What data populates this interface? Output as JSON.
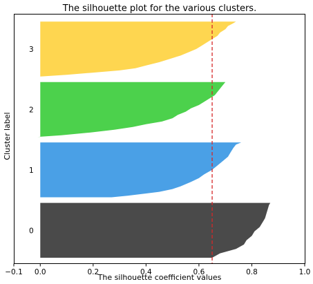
{
  "chart_data": {
    "type": "area",
    "title": "The silhouette plot for the various clusters.",
    "xlabel": "The silhouette coefficient values",
    "ylabel": "Cluster label",
    "xlim": [
      -0.1,
      1.0
    ],
    "ylim": [
      0,
      450
    ],
    "x_ticks": [
      -0.1,
      0.0,
      0.2,
      0.4,
      0.6,
      0.8,
      1.0
    ],
    "x_tick_labels": [
      "−0.1",
      "0.0",
      "0.2",
      "0.4",
      "0.6",
      "0.8",
      "1.0"
    ],
    "grid": false,
    "average_silhouette": 0.65,
    "average_line_color": "#d62728",
    "clusters": [
      {
        "label": "0",
        "color": "#4a4a4a",
        "y_lower": 10,
        "y_upper": 109,
        "profile": [
          [
            0,
            0.65
          ],
          [
            0.08,
            0.68
          ],
          [
            0.16,
            0.74
          ],
          [
            0.24,
            0.77
          ],
          [
            0.32,
            0.78
          ],
          [
            0.4,
            0.8
          ],
          [
            0.48,
            0.81
          ],
          [
            0.56,
            0.83
          ],
          [
            0.64,
            0.84
          ],
          [
            0.72,
            0.85
          ],
          [
            0.8,
            0.855
          ],
          [
            0.88,
            0.86
          ],
          [
            0.96,
            0.865
          ],
          [
            1,
            0.87
          ]
        ]
      },
      {
        "label": "1",
        "color": "#4aa0e6",
        "y_lower": 119,
        "y_upper": 218,
        "profile": [
          [
            0,
            0.27
          ],
          [
            0.03,
            0.33
          ],
          [
            0.07,
            0.4
          ],
          [
            0.1,
            0.45
          ],
          [
            0.15,
            0.5
          ],
          [
            0.2,
            0.53
          ],
          [
            0.28,
            0.57
          ],
          [
            0.35,
            0.6
          ],
          [
            0.42,
            0.62
          ],
          [
            0.5,
            0.65
          ],
          [
            0.58,
            0.67
          ],
          [
            0.66,
            0.69
          ],
          [
            0.74,
            0.71
          ],
          [
            0.82,
            0.72
          ],
          [
            0.9,
            0.73
          ],
          [
            0.96,
            0.74
          ],
          [
            1,
            0.76
          ]
        ]
      },
      {
        "label": "2",
        "color": "#4cd14c",
        "y_lower": 228,
        "y_upper": 327,
        "profile": [
          [
            0,
            -0.01
          ],
          [
            0.03,
            0.08
          ],
          [
            0.08,
            0.19
          ],
          [
            0.13,
            0.28
          ],
          [
            0.18,
            0.35
          ],
          [
            0.23,
            0.4
          ],
          [
            0.28,
            0.46
          ],
          [
            0.34,
            0.5
          ],
          [
            0.4,
            0.52
          ],
          [
            0.46,
            0.55
          ],
          [
            0.52,
            0.57
          ],
          [
            0.58,
            0.6
          ],
          [
            0.64,
            0.62
          ],
          [
            0.7,
            0.64
          ],
          [
            0.76,
            0.66
          ],
          [
            0.82,
            0.67
          ],
          [
            0.88,
            0.68
          ],
          [
            0.94,
            0.69
          ],
          [
            1,
            0.7
          ]
        ]
      },
      {
        "label": "3",
        "color": "#fed650",
        "y_lower": 337,
        "y_upper": 436,
        "profile": [
          [
            0,
            0.0
          ],
          [
            0.03,
            0.1
          ],
          [
            0.07,
            0.2
          ],
          [
            0.11,
            0.3
          ],
          [
            0.15,
            0.36
          ],
          [
            0.2,
            0.4
          ],
          [
            0.26,
            0.45
          ],
          [
            0.32,
            0.49
          ],
          [
            0.38,
            0.53
          ],
          [
            0.44,
            0.56
          ],
          [
            0.5,
            0.59
          ],
          [
            0.56,
            0.61
          ],
          [
            0.62,
            0.63
          ],
          [
            0.68,
            0.65
          ],
          [
            0.74,
            0.67
          ],
          [
            0.8,
            0.68
          ],
          [
            0.86,
            0.7
          ],
          [
            0.92,
            0.71
          ],
          [
            0.97,
            0.73
          ],
          [
            1,
            0.74
          ]
        ]
      }
    ]
  }
}
